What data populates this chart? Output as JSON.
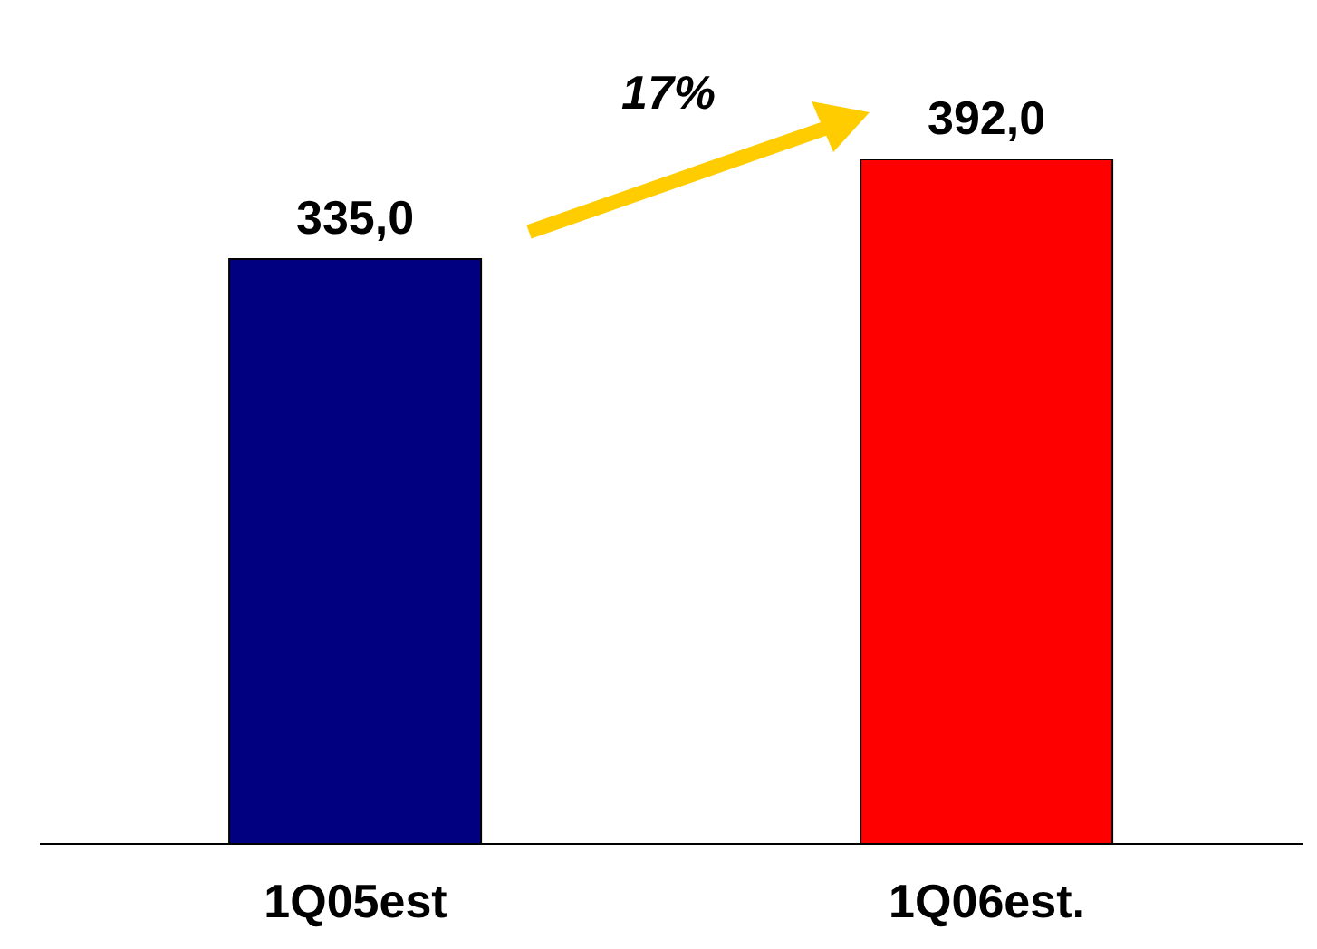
{
  "chart_data": {
    "type": "bar",
    "categories": [
      "1Q05est",
      "1Q06est."
    ],
    "values": [
      335,
      392
    ],
    "colors": [
      "#000080",
      "#ff0000"
    ],
    "value_labels": [
      "335,0",
      "392,0"
    ],
    "annotations": [
      "17%"
    ]
  }
}
